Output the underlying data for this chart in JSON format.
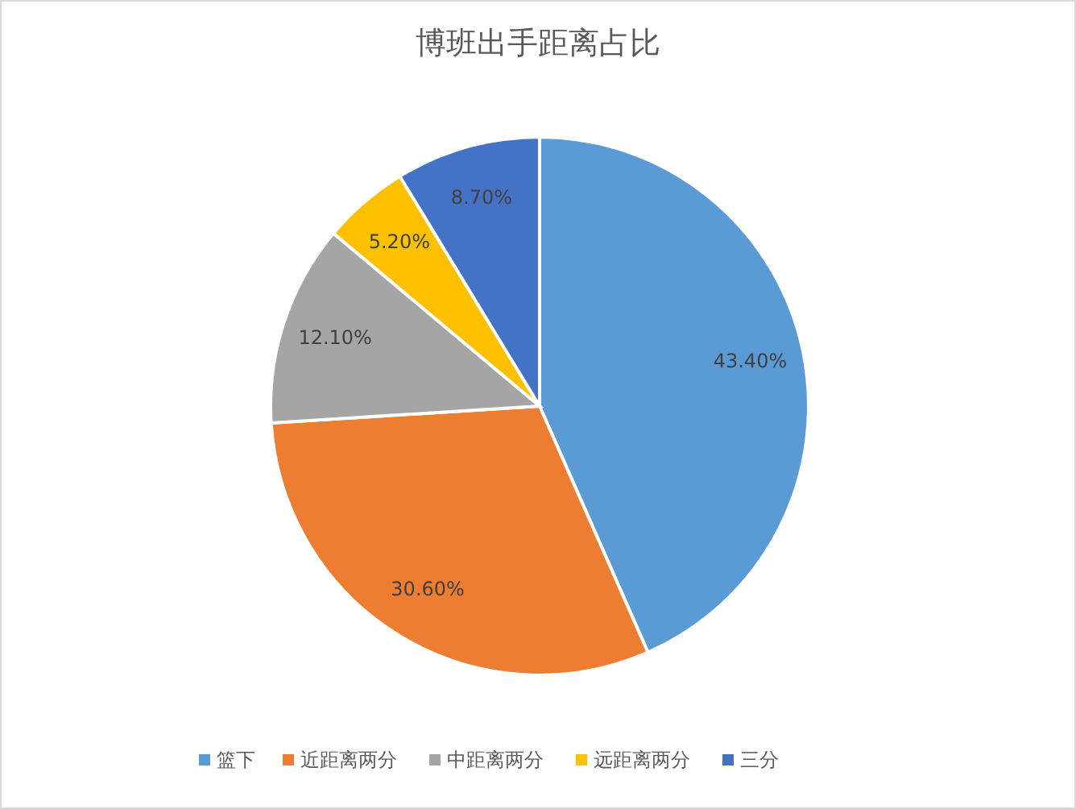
{
  "chart_data": {
    "type": "pie",
    "title": "博班出手距离占比",
    "categories": [
      "篮下",
      "近距离两分",
      "中距离两分",
      "远距离两分",
      "三分"
    ],
    "values": [
      43.4,
      30.6,
      12.1,
      5.2,
      8.7
    ],
    "value_labels": [
      "43.40%",
      "30.60%",
      "12.10%",
      "5.20%",
      "8.70%"
    ],
    "colors": [
      "#5b9bd5",
      "#ed7d31",
      "#a5a5a5",
      "#ffc000",
      "#4472c4"
    ],
    "legend": "bottom"
  }
}
